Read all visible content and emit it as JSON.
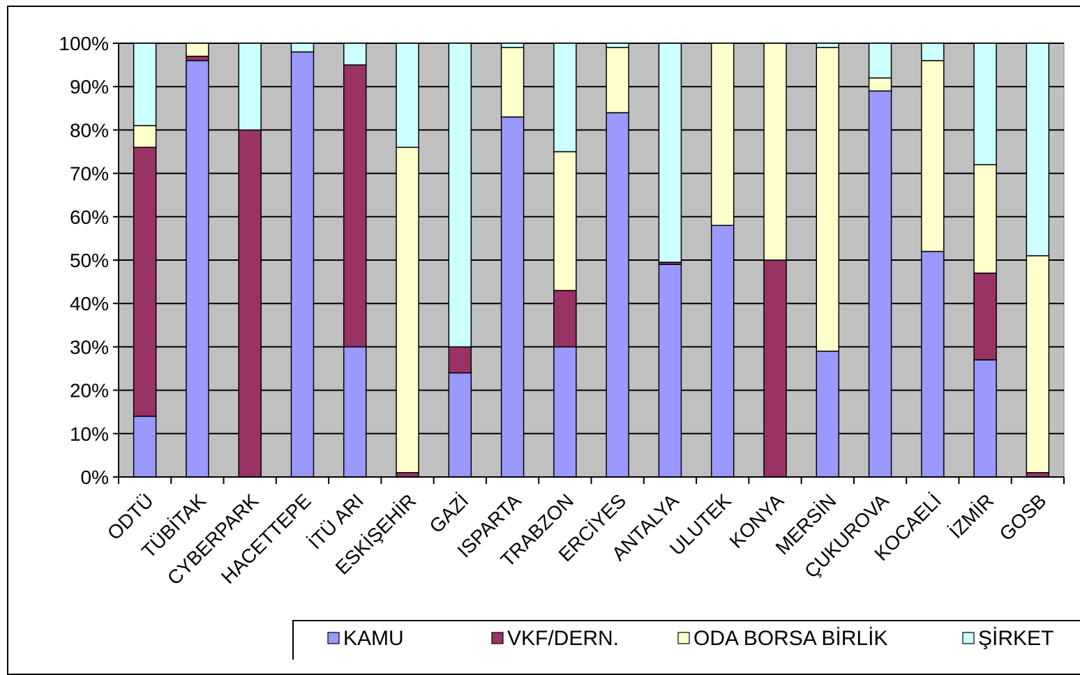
{
  "chart_data": {
    "type": "bar",
    "stacked": true,
    "percent": true,
    "title": "",
    "xlabel": "",
    "ylabel": "",
    "ylim": [
      0,
      100
    ],
    "yticks": [
      "0%",
      "10%",
      "20%",
      "30%",
      "40%",
      "50%",
      "60%",
      "70%",
      "80%",
      "90%",
      "100%"
    ],
    "grid": true,
    "legend_position": "bottom",
    "plot_background": "#c0c0c0",
    "categories": [
      "ODTÜ",
      "TÜBİTAK",
      "CYBERPARK",
      "HACETTEPE",
      "İTÜ ARI",
      "ESKİŞEHİR",
      "GAZİ",
      "ISPARTA",
      "TRABZON",
      "ERCİYES",
      "ANTALYA",
      "ULUTEK",
      "KONYA",
      "MERSİN",
      "ÇUKUROVA",
      "KOCAELİ",
      "İZMİR",
      "GOSB"
    ],
    "series": [
      {
        "name": "KAMU",
        "color": "#9999ff",
        "values": [
          14,
          96,
          0,
          98,
          30,
          0,
          24,
          83,
          30,
          84,
          49,
          58,
          0,
          29,
          89,
          52,
          27,
          0
        ]
      },
      {
        "name": "VKF/DERN.",
        "color": "#993366",
        "values": [
          62,
          1,
          80,
          0,
          65,
          1,
          6,
          0,
          13,
          0,
          0.5,
          0,
          50,
          0,
          0,
          0,
          20,
          1
        ]
      },
      {
        "name": "ODA BORSA BİRLİK",
        "color": "#ffffcc",
        "values": [
          5,
          3,
          0,
          0,
          0,
          75,
          0,
          16,
          32,
          15,
          0,
          42,
          50,
          70,
          3,
          44,
          25,
          50
        ]
      },
      {
        "name": "ŞİRKET",
        "color": "#ccffff",
        "values": [
          19,
          0,
          20,
          2,
          5,
          24,
          70,
          1,
          25,
          1,
          50.5,
          0,
          0,
          1,
          8,
          4,
          28,
          49
        ]
      }
    ]
  }
}
